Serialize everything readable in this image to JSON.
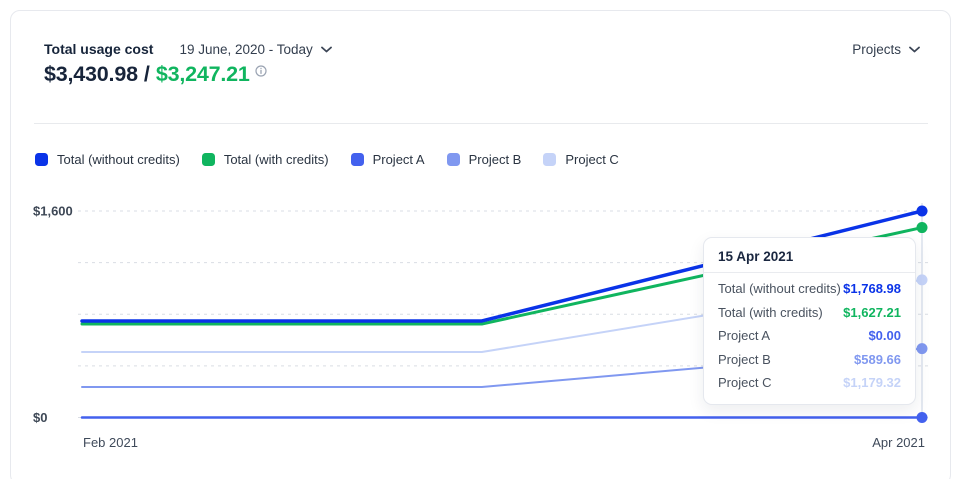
{
  "header": {
    "title": "Total usage cost",
    "date_range": "19 June, 2020 - Today",
    "projects_label": "Projects",
    "amount_without_credits": "$3,430.98",
    "amount_separator": "/",
    "amount_with_credits": "$3,247.21"
  },
  "colors": {
    "total_without_credits": "#0a33e8",
    "total_with_credits": "#10b55f",
    "project_a": "#4361ee",
    "project_b": "#8098f0",
    "project_c": "#c5d3f8",
    "text_dark": "#17243a",
    "grid": "#d9dde4",
    "hover_line": "#c9d3e4"
  },
  "legend": {
    "items": [
      {
        "label": "Total (without credits)",
        "color": "#0a33e8"
      },
      {
        "label": "Total (with credits)",
        "color": "#10b55f"
      },
      {
        "label": "Project A",
        "color": "#4361ee"
      },
      {
        "label": "Project B",
        "color": "#8098f0"
      },
      {
        "label": "Project C",
        "color": "#c5d3f8"
      }
    ]
  },
  "chart_data": {
    "type": "line",
    "title": "Total usage cost over time",
    "x_ticks": [
      {
        "label": "Feb 2021",
        "x_frac": 0.0,
        "anchor": "start"
      },
      {
        "label": "Apr 2021",
        "x_frac": 1.0,
        "anchor": "end"
      }
    ],
    "y_ticks": [
      {
        "label": "$1,600",
        "position": "top"
      },
      {
        "label": "$0",
        "position": "bottom"
      }
    ],
    "ylim": [
      0,
      1768.98
    ],
    "gridline_count": 5,
    "grid_dashed": true,
    "legend_position": "top",
    "bend_x_frac": 0.476,
    "series": [
      {
        "name": "Project C",
        "color": "#c5d3f8",
        "width": 2,
        "flat_value": 561,
        "end_value": 1179.32
      },
      {
        "name": "Project B",
        "color": "#8098f0",
        "width": 2,
        "flat_value": 261,
        "end_value": 589.66
      },
      {
        "name": "Project A",
        "color": "#4361ee",
        "width": 2.5,
        "flat_value": 0,
        "end_value": 0
      },
      {
        "name": "Total (with credits)",
        "color": "#10b55f",
        "width": 3,
        "flat_value": 801,
        "end_value": 1627.21
      },
      {
        "name": "Total (without credits)",
        "color": "#0a33e8",
        "width": 3.5,
        "flat_value": 827,
        "end_value": 1768.98
      }
    ],
    "hover": {
      "date": "15 Apr 2021",
      "x_frac": 1.0
    }
  },
  "tooltip": {
    "date": "15 Apr 2021",
    "rows": [
      {
        "label": "Total (without credits)",
        "value": "$1,768.98",
        "color": "#0a33e8"
      },
      {
        "label": "Total (with credits)",
        "value": "$1,627.21",
        "color": "#10b55f"
      },
      {
        "label": "Project A",
        "value": "$0.00",
        "color": "#4361ee"
      },
      {
        "label": "Project B",
        "value": "$589.66",
        "color": "#8098f0"
      },
      {
        "label": "Project C",
        "value": "$1,179.32",
        "color": "#c5d3f8"
      }
    ]
  }
}
